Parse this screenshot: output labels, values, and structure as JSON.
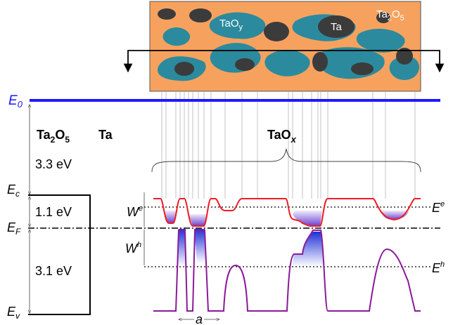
{
  "inset": {
    "tao_y": [
      "TaO",
      "y"
    ],
    "ta": "Ta",
    "ta2o5": [
      "Ta",
      "2",
      "O",
      "5"
    ]
  },
  "levels": {
    "e0": [
      "E",
      "0"
    ],
    "ec": [
      "E",
      "c"
    ],
    "ef": [
      "E",
      "F"
    ],
    "ev": [
      "E",
      "v"
    ],
    "e_e": [
      "E",
      "e"
    ],
    "e_h": [
      "E",
      "h"
    ]
  },
  "materials": {
    "ta2o5": [
      "Ta",
      "2",
      "O",
      "5"
    ],
    "ta": "Ta",
    "tao_x": [
      "TaO",
      "x"
    ]
  },
  "gaps": {
    "vacuum": "3.3 eV",
    "upper": "1.1 eV",
    "lower": "3.1 eV"
  },
  "widths": {
    "w_e": [
      "W",
      "e"
    ],
    "w_h": [
      "W",
      "h"
    ],
    "a": "a"
  }
}
